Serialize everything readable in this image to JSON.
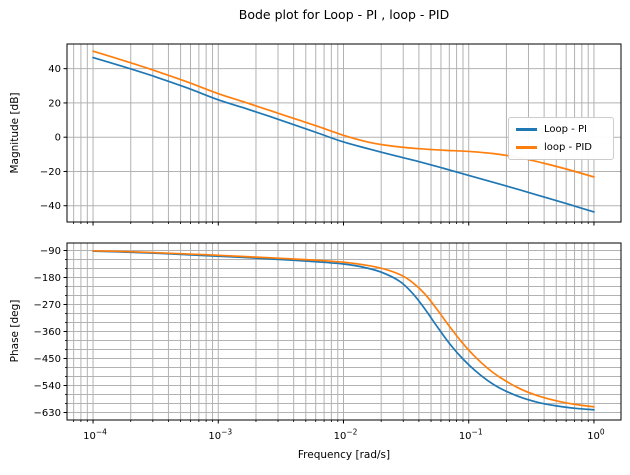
{
  "title": "Bode plot for Loop - PI , loop - PID",
  "style": {
    "grid_color": "#b2b2b2",
    "frame_color": "#000000",
    "text_color": "#000000",
    "legend_border_color": "#cccccc",
    "pi_color": "#1f77b4",
    "pid_color": "#ff7f0e"
  },
  "legend": {
    "position": "center right",
    "items": [
      {
        "label": "Loop - PI",
        "color": "#1f77b4"
      },
      {
        "label": "loop - PID",
        "color": "#ff7f0e"
      }
    ]
  },
  "chart_data": [
    {
      "type": "line",
      "subplot": "magnitude",
      "ylabel": "Magnitude [dB]",
      "xlabel": "",
      "xscale": "log",
      "grid": true,
      "xlim_log10": [
        -4.208,
        0.216
      ],
      "x_decades": [
        -4,
        -3,
        -2,
        -1,
        0
      ],
      "show_x_tick_labels": false,
      "ylim": [
        -49.5,
        54.4
      ],
      "yticks": [
        40,
        20,
        0,
        -20,
        -40
      ],
      "y_minor_step": null,
      "series": [
        {
          "name": "Loop - PI",
          "color": "#1f77b4",
          "x_log10": [
            -4,
            -3.75,
            -3.5,
            -3.25,
            -3,
            -2.8,
            -2.6,
            -2.4,
            -2.2,
            -2,
            -1.8,
            -1.6,
            -1.4,
            -1.2,
            -1,
            -0.8,
            -0.6,
            -0.4,
            -0.2,
            0
          ],
          "y": [
            46.5,
            41.0,
            35.2,
            28.8,
            21.8,
            17.2,
            12.4,
            7.4,
            2.3,
            -2.8,
            -6.8,
            -10.6,
            -14.2,
            -18.2,
            -22.3,
            -26.4,
            -30.6,
            -34.9,
            -39.2,
            -43.6
          ]
        },
        {
          "name": "loop - PID",
          "color": "#ff7f0e",
          "x_log10": [
            -4,
            -3.75,
            -3.5,
            -3.25,
            -3,
            -2.8,
            -2.6,
            -2.4,
            -2.2,
            -2,
            -1.8,
            -1.6,
            -1.4,
            -1.2,
            -1,
            -0.8,
            -0.6,
            -0.4,
            -0.2,
            0
          ],
          "y": [
            50.2,
            44.6,
            38.7,
            32.3,
            25.4,
            20.7,
            15.9,
            11.0,
            6.2,
            1.1,
            -2.9,
            -5.3,
            -6.7,
            -7.6,
            -8.3,
            -9.6,
            -11.9,
            -15.2,
            -19.0,
            -23.2
          ]
        }
      ]
    },
    {
      "type": "line",
      "subplot": "phase",
      "ylabel": "Phase [deg]",
      "xlabel": "Frequency [rad/s]",
      "xscale": "log",
      "grid": true,
      "xlim_log10": [
        -4.208,
        0.216
      ],
      "x_decades": [
        -4,
        -3,
        -2,
        -1,
        0
      ],
      "show_x_tick_labels": true,
      "ylim": [
        -655,
        -65
      ],
      "yticks": [
        -90,
        -180,
        -270,
        -360,
        -450,
        -540,
        -630
      ],
      "y_minor_step": 30,
      "series": [
        {
          "name": "Loop - PI",
          "color": "#1f77b4",
          "x_log10": [
            -4,
            -3.7,
            -3.4,
            -3.1,
            -2.8,
            -2.5,
            -2.2,
            -2,
            -1.85,
            -1.7,
            -1.55,
            -1.45,
            -1.35,
            -1.25,
            -1.15,
            -1.05,
            -0.95,
            -0.85,
            -0.75,
            -0.6,
            -0.45,
            -0.3,
            -0.15,
            0
          ],
          "y": [
            -92,
            -96,
            -101,
            -107,
            -113,
            -120,
            -128,
            -135,
            -145,
            -162,
            -193,
            -232,
            -285,
            -345,
            -402,
            -450,
            -490,
            -523,
            -549,
            -577,
            -596,
            -608,
            -616,
            -621
          ]
        },
        {
          "name": "loop - PID",
          "color": "#ff7f0e",
          "x_log10": [
            -4,
            -3.7,
            -3.4,
            -3.1,
            -2.8,
            -2.5,
            -2.2,
            -2,
            -1.85,
            -1.7,
            -1.55,
            -1.45,
            -1.35,
            -1.25,
            -1.15,
            -1.05,
            -0.95,
            -0.85,
            -0.75,
            -0.6,
            -0.45,
            -0.3,
            -0.15,
            0
          ],
          "y": [
            -91,
            -94,
            -99,
            -104,
            -110,
            -116,
            -123,
            -129,
            -137,
            -149,
            -170,
            -196,
            -235,
            -288,
            -345,
            -398,
            -444,
            -482,
            -513,
            -549,
            -574,
            -591,
            -603,
            -611
          ]
        }
      ]
    }
  ]
}
